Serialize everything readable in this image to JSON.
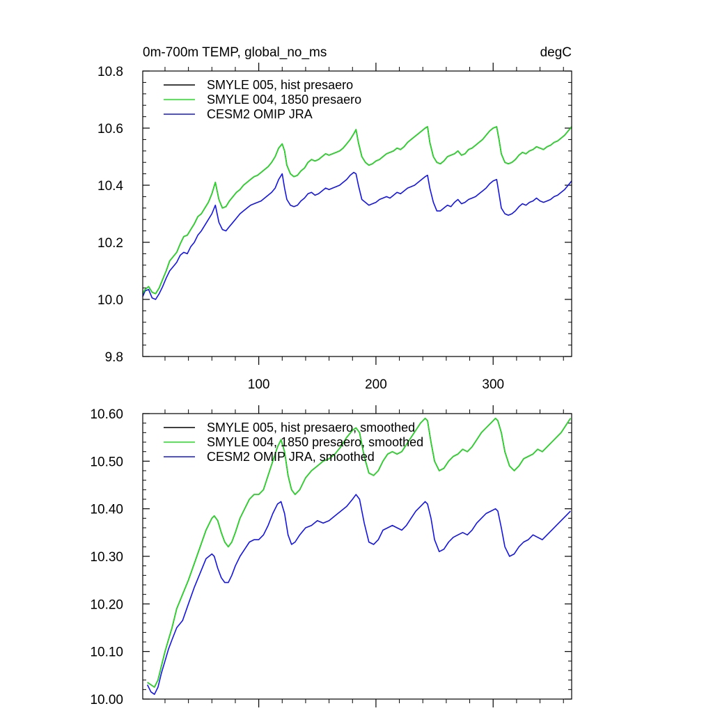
{
  "colors": {
    "hist": "#000000",
    "presaero_1850": "#22dd22",
    "omip": "#1414e6",
    "frame": "#000000",
    "background": "#ffffff"
  },
  "chart_data": [
    {
      "type": "line",
      "title": "0m-700m TEMP, global_no_ms",
      "units_label": "degC",
      "xlabel": "",
      "ylabel": "",
      "xlim": [
        1,
        367
      ],
      "ylim": [
        9.8,
        10.8
      ],
      "x_ticks": [
        100,
        200,
        300
      ],
      "x_tick_labels": [
        "100",
        "200",
        "300"
      ],
      "y_ticks": [
        9.8,
        10.0,
        10.2,
        10.4,
        10.6,
        10.8
      ],
      "y_tick_labels": [
        "9.8",
        "10.0",
        "10.2",
        "10.4",
        "10.6",
        "10.8"
      ],
      "grid": false,
      "legend_position": "top-left",
      "x": [
        1,
        3,
        6,
        9,
        12,
        15,
        18,
        21,
        24,
        27,
        30,
        33,
        36,
        39,
        42,
        45,
        48,
        51,
        54,
        57,
        60,
        63,
        66,
        69,
        72,
        75,
        78,
        81,
        84,
        87,
        90,
        93,
        96,
        99,
        102,
        105,
        108,
        111,
        114,
        117,
        120,
        122,
        124,
        127,
        130,
        133,
        136,
        139,
        142,
        145,
        148,
        151,
        154,
        157,
        160,
        163,
        166,
        169,
        172,
        175,
        178,
        181,
        183,
        185,
        188,
        191,
        194,
        197,
        200,
        203,
        206,
        209,
        212,
        215,
        218,
        221,
        224,
        227,
        230,
        233,
        236,
        239,
        242,
        244,
        246,
        249,
        252,
        255,
        258,
        261,
        264,
        267,
        270,
        273,
        276,
        279,
        282,
        285,
        288,
        291,
        294,
        297,
        300,
        303,
        305,
        307,
        310,
        313,
        316,
        319,
        322,
        325,
        328,
        331,
        334,
        337,
        340,
        343,
        346,
        349,
        352,
        355,
        358,
        361,
        364,
        367
      ],
      "series": [
        {
          "name": "SMYLE 005, hist presaero",
          "color": "#000000",
          "values": [
            10.02,
            10.035,
            10.045,
            10.025,
            10.02,
            10.04,
            10.07,
            10.1,
            10.135,
            10.15,
            10.165,
            10.195,
            10.22,
            10.225,
            10.245,
            10.265,
            10.29,
            10.3,
            10.32,
            10.34,
            10.37,
            10.41,
            10.35,
            10.32,
            10.325,
            10.345,
            10.36,
            10.375,
            10.385,
            10.4,
            10.41,
            10.42,
            10.43,
            10.435,
            10.445,
            10.455,
            10.465,
            10.48,
            10.5,
            10.53,
            10.545,
            10.52,
            10.47,
            10.44,
            10.43,
            10.435,
            10.45,
            10.46,
            10.48,
            10.49,
            10.485,
            10.49,
            10.5,
            10.51,
            10.505,
            10.51,
            10.515,
            10.52,
            10.53,
            10.545,
            10.56,
            10.58,
            10.595,
            10.55,
            10.5,
            10.48,
            10.47,
            10.475,
            10.485,
            10.49,
            10.5,
            10.51,
            10.515,
            10.52,
            10.53,
            10.525,
            10.535,
            10.55,
            10.56,
            10.57,
            10.58,
            10.59,
            10.6,
            10.605,
            10.55,
            10.5,
            10.48,
            10.475,
            10.485,
            10.5,
            10.505,
            10.51,
            10.52,
            10.505,
            10.51,
            10.525,
            10.53,
            10.54,
            10.55,
            10.56,
            10.575,
            10.59,
            10.6,
            10.605,
            10.56,
            10.51,
            10.48,
            10.475,
            10.48,
            10.49,
            10.505,
            10.515,
            10.51,
            10.52,
            10.525,
            10.535,
            10.53,
            10.525,
            10.535,
            10.54,
            10.55,
            10.555,
            10.565,
            10.575,
            10.59,
            10.605
          ]
        },
        {
          "name": "SMYLE 004, 1850 presaero",
          "color": "#22dd22",
          "values": [
            10.02,
            10.035,
            10.045,
            10.025,
            10.02,
            10.04,
            10.07,
            10.1,
            10.135,
            10.15,
            10.165,
            10.195,
            10.22,
            10.225,
            10.245,
            10.265,
            10.29,
            10.3,
            10.32,
            10.34,
            10.37,
            10.41,
            10.35,
            10.32,
            10.325,
            10.345,
            10.36,
            10.375,
            10.385,
            10.4,
            10.41,
            10.42,
            10.43,
            10.435,
            10.445,
            10.455,
            10.465,
            10.48,
            10.5,
            10.53,
            10.545,
            10.52,
            10.47,
            10.44,
            10.43,
            10.435,
            10.45,
            10.46,
            10.48,
            10.49,
            10.485,
            10.49,
            10.5,
            10.51,
            10.505,
            10.51,
            10.515,
            10.52,
            10.53,
            10.545,
            10.56,
            10.58,
            10.595,
            10.55,
            10.5,
            10.48,
            10.47,
            10.475,
            10.485,
            10.49,
            10.5,
            10.51,
            10.515,
            10.52,
            10.53,
            10.525,
            10.535,
            10.55,
            10.56,
            10.57,
            10.58,
            10.59,
            10.6,
            10.605,
            10.55,
            10.5,
            10.48,
            10.475,
            10.485,
            10.5,
            10.505,
            10.51,
            10.52,
            10.505,
            10.51,
            10.525,
            10.53,
            10.54,
            10.55,
            10.56,
            10.575,
            10.59,
            10.6,
            10.605,
            10.56,
            10.51,
            10.48,
            10.475,
            10.48,
            10.49,
            10.505,
            10.515,
            10.51,
            10.52,
            10.525,
            10.535,
            10.53,
            10.525,
            10.535,
            10.54,
            10.55,
            10.555,
            10.565,
            10.575,
            10.59,
            10.605
          ]
        },
        {
          "name": "CESM2 OMIP JRA",
          "color": "#1414e6",
          "values": [
            10.01,
            10.03,
            10.035,
            10.005,
            10.0,
            10.02,
            10.045,
            10.075,
            10.1,
            10.115,
            10.13,
            10.155,
            10.165,
            10.16,
            10.185,
            10.2,
            10.225,
            10.24,
            10.26,
            10.28,
            10.3,
            10.33,
            10.27,
            10.245,
            10.24,
            10.255,
            10.27,
            10.285,
            10.3,
            10.31,
            10.32,
            10.33,
            10.335,
            10.34,
            10.345,
            10.355,
            10.365,
            10.375,
            10.39,
            10.42,
            10.44,
            10.39,
            10.35,
            10.33,
            10.325,
            10.33,
            10.345,
            10.355,
            10.37,
            10.375,
            10.365,
            10.37,
            10.38,
            10.39,
            10.385,
            10.39,
            10.395,
            10.4,
            10.41,
            10.42,
            10.435,
            10.445,
            10.44,
            10.4,
            10.35,
            10.34,
            10.33,
            10.335,
            10.34,
            10.35,
            10.355,
            10.36,
            10.355,
            10.365,
            10.375,
            10.37,
            10.38,
            10.39,
            10.395,
            10.4,
            10.41,
            10.42,
            10.43,
            10.435,
            10.39,
            10.34,
            10.31,
            10.31,
            10.32,
            10.33,
            10.325,
            10.34,
            10.35,
            10.335,
            10.34,
            10.35,
            10.355,
            10.36,
            10.37,
            10.38,
            10.39,
            10.405,
            10.415,
            10.42,
            10.37,
            10.32,
            10.3,
            10.295,
            10.3,
            10.31,
            10.325,
            10.335,
            10.33,
            10.34,
            10.345,
            10.355,
            10.345,
            10.34,
            10.345,
            10.35,
            10.36,
            10.365,
            10.375,
            10.385,
            10.4,
            10.415
          ]
        }
      ]
    },
    {
      "type": "line",
      "title": "",
      "xlabel": "",
      "ylabel": "",
      "xlim": [
        1,
        367
      ],
      "ylim": [
        10.0,
        10.6
      ],
      "x_ticks": [
        100,
        200,
        300
      ],
      "x_tick_labels": [],
      "y_ticks": [
        10.0,
        10.1,
        10.2,
        10.3,
        10.4,
        10.5,
        10.6
      ],
      "y_tick_labels": [
        "10.00",
        "10.10",
        "10.20",
        "10.30",
        "10.40",
        "10.50",
        "10.60"
      ],
      "grid": false,
      "legend_position": "top-left",
      "x": [
        5,
        8,
        11,
        14,
        17,
        20,
        23,
        26,
        30,
        35,
        40,
        45,
        50,
        55,
        60,
        62,
        65,
        68,
        71,
        74,
        77,
        80,
        84,
        88,
        92,
        96,
        100,
        104,
        108,
        112,
        116,
        119,
        122,
        125,
        128,
        131,
        135,
        140,
        145,
        150,
        155,
        160,
        165,
        170,
        175,
        180,
        183,
        186,
        190,
        194,
        198,
        202,
        206,
        210,
        214,
        218,
        222,
        226,
        230,
        234,
        238,
        242,
        244,
        247,
        250,
        254,
        258,
        262,
        266,
        270,
        274,
        278,
        282,
        286,
        290,
        294,
        298,
        302,
        304,
        307,
        310,
        314,
        318,
        322,
        326,
        330,
        334,
        338,
        342,
        346,
        350,
        354,
        358,
        362,
        366
      ],
      "series": [
        {
          "name": "SMYLE 005, hist presaero, smoothed",
          "color": "#000000",
          "values": [
            10.035,
            10.03,
            10.025,
            10.04,
            10.07,
            10.1,
            10.125,
            10.15,
            10.19,
            10.22,
            10.25,
            10.285,
            10.32,
            10.355,
            10.38,
            10.385,
            10.375,
            10.35,
            10.33,
            10.32,
            10.33,
            10.35,
            10.38,
            10.4,
            10.42,
            10.43,
            10.43,
            10.44,
            10.47,
            10.5,
            10.53,
            10.545,
            10.52,
            10.47,
            10.44,
            10.43,
            10.44,
            10.465,
            10.48,
            10.49,
            10.5,
            10.505,
            10.515,
            10.53,
            10.55,
            10.565,
            10.57,
            10.56,
            10.51,
            10.475,
            10.47,
            10.48,
            10.5,
            10.515,
            10.52,
            10.515,
            10.52,
            10.535,
            10.55,
            10.565,
            10.58,
            10.59,
            10.585,
            10.54,
            10.5,
            10.48,
            10.485,
            10.5,
            10.51,
            10.515,
            10.525,
            10.52,
            10.53,
            10.545,
            10.56,
            10.57,
            10.58,
            10.59,
            10.585,
            10.56,
            10.52,
            10.49,
            10.48,
            10.49,
            10.505,
            10.51,
            10.515,
            10.525,
            10.52,
            10.53,
            10.54,
            10.55,
            10.56,
            10.575,
            10.59
          ]
        },
        {
          "name": "SMYLE 004, 1850 presaero, smoothed",
          "color": "#22dd22",
          "values": [
            10.035,
            10.03,
            10.025,
            10.04,
            10.07,
            10.1,
            10.125,
            10.15,
            10.19,
            10.22,
            10.25,
            10.285,
            10.32,
            10.355,
            10.38,
            10.385,
            10.375,
            10.35,
            10.33,
            10.32,
            10.33,
            10.35,
            10.38,
            10.4,
            10.42,
            10.43,
            10.43,
            10.44,
            10.47,
            10.5,
            10.53,
            10.545,
            10.52,
            10.47,
            10.44,
            10.43,
            10.44,
            10.465,
            10.48,
            10.49,
            10.5,
            10.505,
            10.515,
            10.53,
            10.55,
            10.565,
            10.57,
            10.56,
            10.51,
            10.475,
            10.47,
            10.48,
            10.5,
            10.515,
            10.52,
            10.515,
            10.52,
            10.535,
            10.55,
            10.565,
            10.58,
            10.59,
            10.585,
            10.54,
            10.5,
            10.48,
            10.485,
            10.5,
            10.51,
            10.515,
            10.525,
            10.52,
            10.53,
            10.545,
            10.56,
            10.57,
            10.58,
            10.59,
            10.585,
            10.56,
            10.52,
            10.49,
            10.48,
            10.49,
            10.505,
            10.51,
            10.515,
            10.525,
            10.52,
            10.53,
            10.54,
            10.55,
            10.56,
            10.575,
            10.59
          ]
        },
        {
          "name": "CESM2 OMIP JRA, smoothed",
          "color": "#1414e6",
          "values": [
            10.03,
            10.015,
            10.01,
            10.025,
            10.055,
            10.08,
            10.105,
            10.125,
            10.15,
            10.165,
            10.2,
            10.235,
            10.265,
            10.295,
            10.305,
            10.3,
            10.275,
            10.255,
            10.245,
            10.245,
            10.26,
            10.28,
            10.3,
            10.315,
            10.33,
            10.335,
            10.335,
            10.345,
            10.365,
            10.39,
            10.41,
            10.415,
            10.39,
            10.345,
            10.325,
            10.33,
            10.345,
            10.36,
            10.365,
            10.375,
            10.37,
            10.375,
            10.385,
            10.395,
            10.405,
            10.42,
            10.43,
            10.42,
            10.37,
            10.33,
            10.325,
            10.335,
            10.355,
            10.36,
            10.365,
            10.36,
            10.355,
            10.365,
            10.38,
            10.395,
            10.405,
            10.415,
            10.41,
            10.38,
            10.335,
            10.31,
            10.315,
            10.33,
            10.34,
            10.345,
            10.35,
            10.345,
            10.355,
            10.37,
            10.38,
            10.39,
            10.395,
            10.4,
            10.395,
            10.36,
            10.32,
            10.3,
            10.305,
            10.32,
            10.33,
            10.335,
            10.345,
            10.34,
            10.335,
            10.345,
            10.355,
            10.365,
            10.375,
            10.385,
            10.395
          ]
        }
      ]
    }
  ]
}
